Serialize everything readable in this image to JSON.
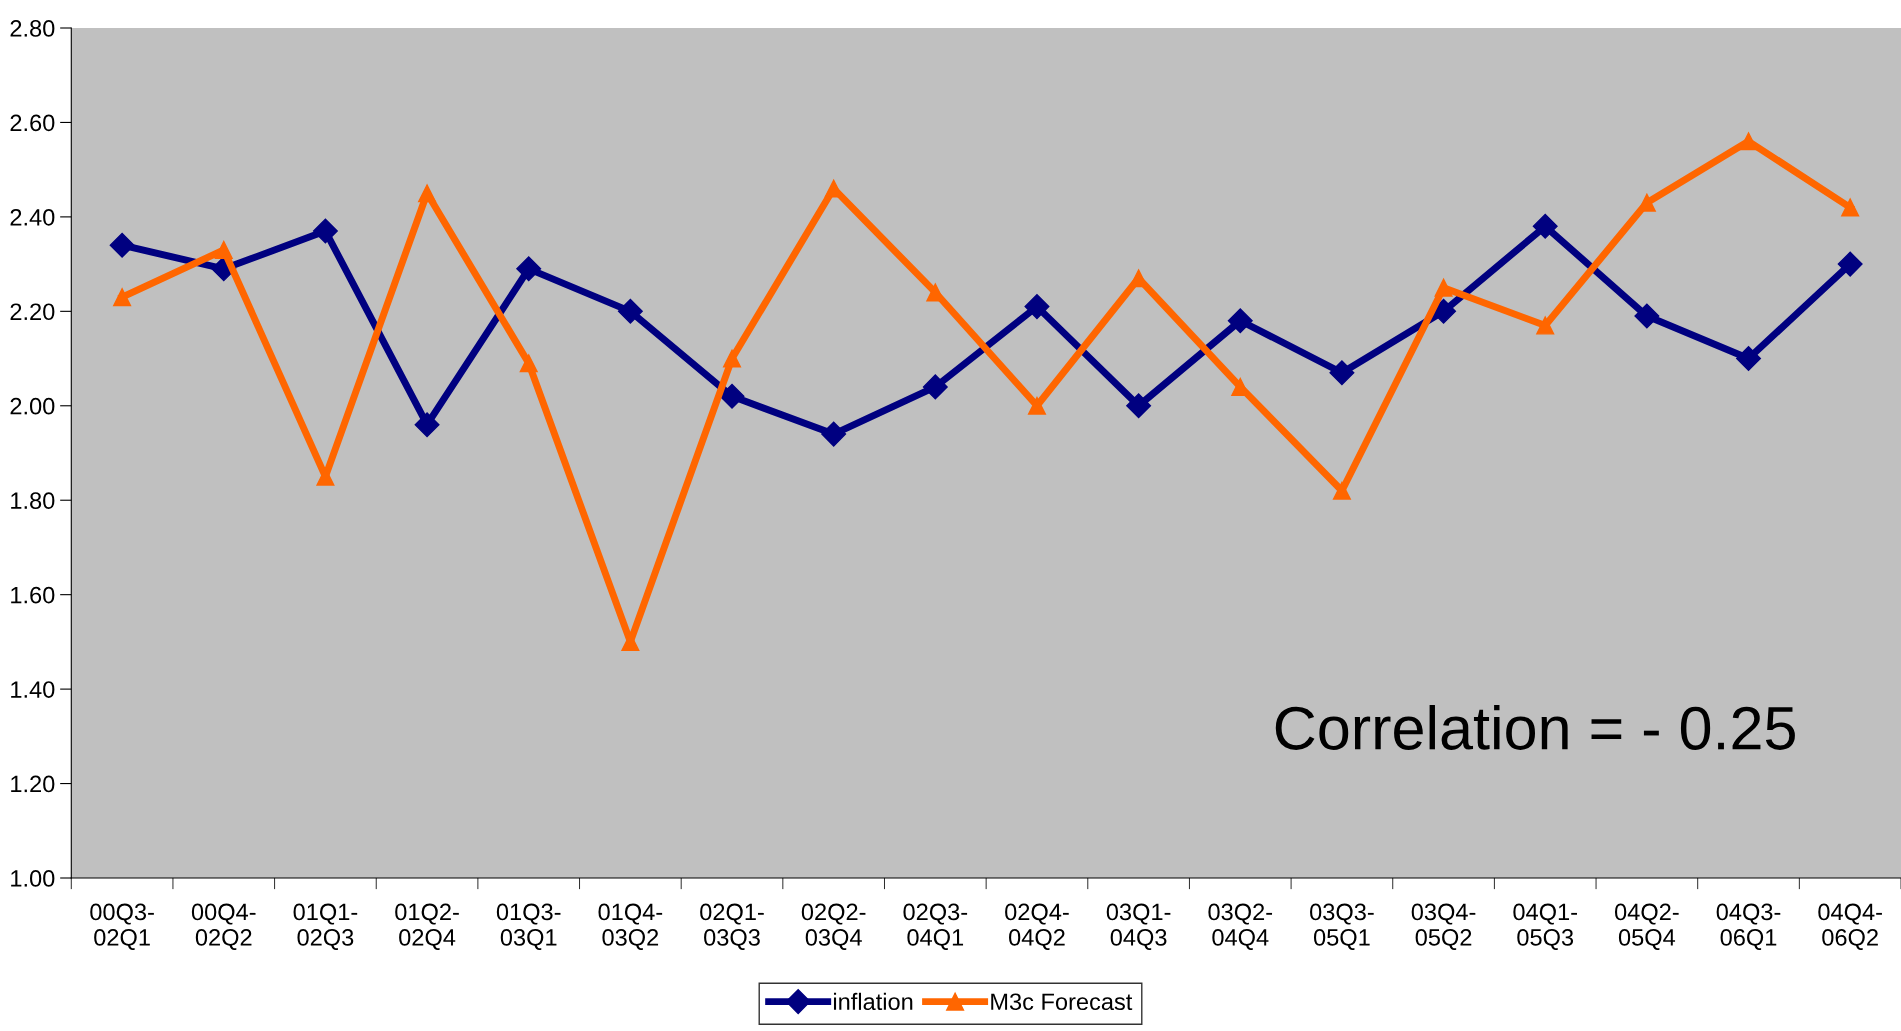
{
  "chart_data": {
    "type": "line",
    "categories": [
      "00Q3-\n02Q1",
      "00Q4-\n02Q2",
      "01Q1-\n02Q3",
      "01Q2-\n02Q4",
      "01Q3-\n03Q1",
      "01Q4-\n03Q2",
      "02Q1-\n03Q3",
      "02Q2-\n03Q4",
      "02Q3-\n04Q1",
      "02Q4-\n04Q2",
      "03Q1-\n04Q3",
      "03Q2-\n04Q4",
      "03Q3-\n05Q1",
      "03Q4-\n05Q2",
      "04Q1-\n05Q3",
      "04Q2-\n05Q4",
      "04Q3-\n06Q1",
      "04Q4-\n06Q2"
    ],
    "series": [
      {
        "name": "inflation",
        "color": "#000080",
        "marker": "diamond",
        "values": [
          2.34,
          2.29,
          2.37,
          1.96,
          2.29,
          2.2,
          2.02,
          1.94,
          2.04,
          2.21,
          2.0,
          2.18,
          2.07,
          2.2,
          2.38,
          2.19,
          2.1,
          2.3
        ]
      },
      {
        "name": "M3c Forecast",
        "color": "#ff6600",
        "marker": "triangle",
        "values": [
          2.23,
          2.33,
          1.85,
          2.45,
          2.09,
          1.5,
          2.1,
          2.46,
          2.24,
          2.0,
          2.27,
          2.04,
          1.82,
          2.25,
          2.17,
          2.43,
          2.56,
          2.42
        ]
      }
    ],
    "ylim": [
      1.0,
      2.8
    ],
    "yticks": [
      {
        "value": 1.0,
        "label": "1.00"
      },
      {
        "value": 1.2,
        "label": "1.20"
      },
      {
        "value": 1.4,
        "label": "1.40"
      },
      {
        "value": 1.6,
        "label": "1.60"
      },
      {
        "value": 1.8,
        "label": "1.80"
      },
      {
        "value": 2.0,
        "label": "2.00"
      },
      {
        "value": 2.2,
        "label": "2.20"
      },
      {
        "value": 2.4,
        "label": "2.40"
      },
      {
        "value": 2.6,
        "label": "2.60"
      },
      {
        "value": 2.8,
        "label": "2.80"
      }
    ],
    "annotations": [
      "Correlation = - 0.25"
    ],
    "grid": false,
    "legend": "bottom",
    "line_style": "solid"
  }
}
